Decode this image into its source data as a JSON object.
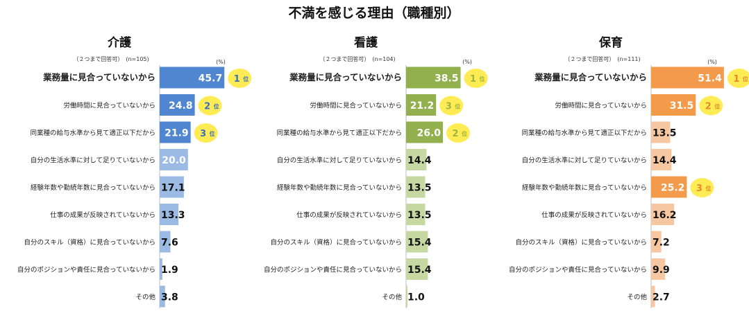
{
  "chart_data": {
    "type": "bar",
    "title": "不満を感じる理由（職種別）",
    "unit": "(%)",
    "rank_suffix": "位",
    "categories": [
      "業務量に見合っていないから",
      "労働時間に見合っていないから",
      "同業種の給与水準から見て適正以下だから",
      "自分の生活水準に対して足りていないから",
      "経験年数や勤続年数に見合っていないから",
      "仕事の成果が反映されていないから",
      "自分のスキル（資格）に見合っていないから",
      "自分のポジションや責任に見合っていないから",
      "その他"
    ],
    "panels": [
      {
        "name": "介護",
        "note": "（２つまで回答可）　(n=105)",
        "values": [
          45.7,
          24.8,
          21.9,
          20.0,
          17.1,
          13.3,
          7.6,
          1.9,
          3.8
        ],
        "value_labels": [
          "45.7",
          "24.8",
          "21.9",
          "20.0",
          "17.1",
          "13.3",
          "7.6",
          "1.9",
          "3.8"
        ],
        "ranks": [
          1,
          2,
          3,
          null,
          null,
          null,
          null,
          null,
          null
        ],
        "colors": {
          "top": "#4f86cf",
          "other": "#9bbbe4",
          "rank_text": "#3a6fc0"
        }
      },
      {
        "name": "看護",
        "note": "（２つまで回答可）　(n=104)",
        "values": [
          38.5,
          21.2,
          26.0,
          14.4,
          13.5,
          13.5,
          15.4,
          15.4,
          1.0
        ],
        "value_labels": [
          "38.5",
          "21.2",
          "26.0",
          "14.4",
          "13.5",
          "13.5",
          "15.4",
          "15.4",
          "1.0"
        ],
        "ranks": [
          1,
          3,
          2,
          null,
          null,
          null,
          null,
          null,
          null
        ],
        "colors": {
          "top": "#93b04e",
          "other": "#c6d9a3",
          "rank_text": "#9db440"
        }
      },
      {
        "name": "保育",
        "note": "（２つまで回答可）　(n=111)",
        "values": [
          51.4,
          31.5,
          13.5,
          14.4,
          25.2,
          16.2,
          7.2,
          9.9,
          2.7
        ],
        "value_labels": [
          "51.4",
          "31.5",
          "13.5",
          "14.4",
          "25.2",
          "16.2",
          "7.2",
          "9.9",
          "2.7"
        ],
        "ranks": [
          1,
          2,
          null,
          null,
          3,
          null,
          null,
          null,
          null
        ],
        "colors": {
          "top": "#f39a4b",
          "other": "#f7c7a2",
          "rank_text": "#e48a2a"
        }
      }
    ],
    "rank_badge_color": "#ffec54",
    "grid": false,
    "legend": "none"
  }
}
